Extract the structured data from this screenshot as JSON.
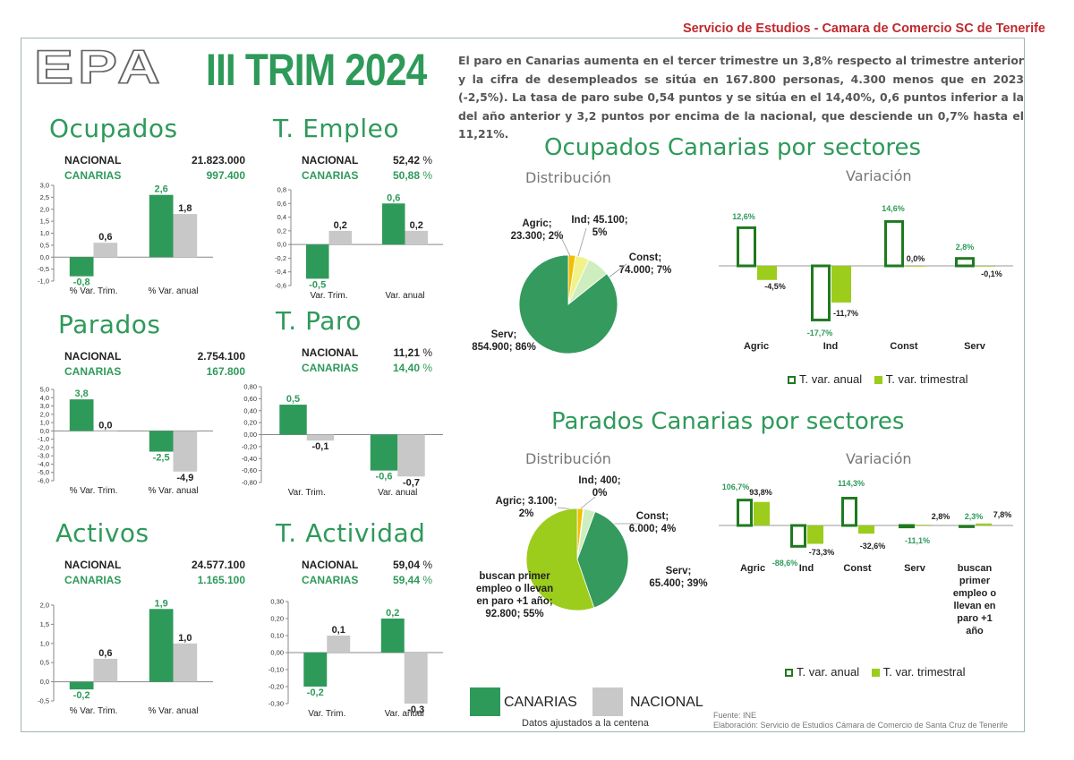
{
  "header": {
    "source": "Servicio de Estudios - Camara de Comercio SC de Tenerife",
    "logo_epa": "EPA",
    "logo_period": "III TRIM 2024"
  },
  "intro_text": "El paro en Canarias aumenta en el tercer trimestre un 3,8% respecto al trimestre anterior y la cifra de desempleados se sitúa en 167.800 personas, 4.300 menos que en 2023 (-2,5%). La tasa de paro sube 0,54 puntos y se sitúa en el 14,40%, 0,6 puntos inferior a la del año anterior y 3,2 puntos por encima de la nacional, que desciende un 0,7% hasta el 11,21%.",
  "colors": {
    "canarias": "#2e9a5a",
    "nacional": "#c8c8c8",
    "anual": "#1f7a1f",
    "trimestral": "#9ccc1c",
    "title": "#2e9a5a"
  },
  "indicators": [
    {
      "key": "ocupados",
      "title": "Ocupados",
      "nacional_label": "NACIONAL",
      "canarias_label": "CANARIAS",
      "nacional_value": "21.823.000",
      "canarias_value": "997.400",
      "unit": ""
    },
    {
      "key": "templeo",
      "title": "T. Empleo",
      "nacional_label": "NACIONAL",
      "canarias_label": "CANARIAS",
      "nacional_value": "52,42",
      "canarias_value": "50,88",
      "unit": "%"
    },
    {
      "key": "parados",
      "title": "Parados",
      "nacional_label": "NACIONAL",
      "canarias_label": "CANARIAS",
      "nacional_value": "2.754.100",
      "canarias_value": "167.800",
      "unit": ""
    },
    {
      "key": "tparo",
      "title": "T. Paro",
      "nacional_label": "NACIONAL",
      "canarias_label": "CANARIAS",
      "nacional_value": "11,21",
      "canarias_value": "14,40",
      "unit": "%"
    },
    {
      "key": "activos",
      "title": "Activos",
      "nacional_label": "NACIONAL",
      "canarias_label": "CANARIAS",
      "nacional_value": "24.577.100",
      "canarias_value": "1.165.100",
      "unit": ""
    },
    {
      "key": "tactividad",
      "title": "T. Actividad",
      "nacional_label": "NACIONAL",
      "canarias_label": "CANARIAS",
      "nacional_value": "59,04",
      "canarias_value": "59,44",
      "unit": "%"
    }
  ],
  "legend": {
    "canarias": "CANARIAS",
    "nacional": "NACIONAL",
    "note": "Datos ajustados a la centena"
  },
  "sector_sections": {
    "ocupados_title": "Ocupados Canarias por sectores",
    "parados_title": "Parados Canarias por sectores",
    "distribucion": "Distribución",
    "variacion": "Variación",
    "legend_anual": "T. var. anual",
    "legend_trimestral": "T. var. trimestral"
  },
  "footer": {
    "fuente": "Fuente: INE",
    "elaboracion": "Elaboración: Servicio de Estudios Cámara de Comercio de Santa Cruz de Tenerife"
  },
  "chart_data": [
    {
      "id": "ocupados_chart",
      "type": "bar",
      "categories": [
        "% Var. Trim.",
        "% Var. anual"
      ],
      "series": [
        {
          "name": "CANARIAS",
          "values": [
            -0.8,
            2.6
          ]
        },
        {
          "name": "NACIONAL",
          "values": [
            0.6,
            1.8
          ]
        }
      ],
      "value_labels": [
        [
          "-0,8",
          "2,6"
        ],
        [
          "0,6",
          "1,8"
        ]
      ],
      "ylim": [
        -1.0,
        3.0
      ],
      "yticks": [
        "-1,0",
        "-0,5",
        "0,0",
        "0,5",
        "1,0",
        "1,5",
        "2,0",
        "2,5",
        "3,0"
      ],
      "ytick_values": [
        -1.0,
        -0.5,
        0,
        0.5,
        1.0,
        1.5,
        2.0,
        2.5,
        3.0
      ]
    },
    {
      "id": "templeo_chart",
      "type": "bar",
      "categories": [
        "Var. Trim.",
        "Var. anual"
      ],
      "series": [
        {
          "name": "CANARIAS",
          "values": [
            -0.5,
            0.6
          ]
        },
        {
          "name": "NACIONAL",
          "values": [
            0.2,
            0.2
          ]
        }
      ],
      "value_labels": [
        [
          "-0,5",
          "0,6"
        ],
        [
          "0,2",
          "0,2"
        ]
      ],
      "ylim": [
        -0.6,
        0.8
      ],
      "yticks": [
        "-0,6",
        "-0,4",
        "-0,2",
        "0,0",
        "0,2",
        "0,4",
        "0,6",
        "0,8"
      ],
      "ytick_values": [
        -0.6,
        -0.4,
        -0.2,
        0,
        0.2,
        0.4,
        0.6,
        0.8
      ]
    },
    {
      "id": "parados_chart",
      "type": "bar",
      "categories": [
        "% Var. Trim.",
        "% Var. anual"
      ],
      "series": [
        {
          "name": "CANARIAS",
          "values": [
            3.8,
            -2.5
          ]
        },
        {
          "name": "NACIONAL",
          "values": [
            0.0,
            -4.9
          ]
        }
      ],
      "value_labels": [
        [
          "3,8",
          "-2,5"
        ],
        [
          "0,0",
          "-4,9"
        ]
      ],
      "ylim": [
        -6.0,
        5.0
      ],
      "yticks": [
        "-6,0",
        "-5,0",
        "-4,0",
        "-3,0",
        "-2,0",
        "-1,0",
        "0,0",
        "1,0",
        "2,0",
        "3,0",
        "4,0",
        "5,0"
      ],
      "ytick_values": [
        -6,
        -5,
        -4,
        -3,
        -2,
        -1,
        0,
        1,
        2,
        3,
        4,
        5
      ]
    },
    {
      "id": "tparo_chart",
      "type": "bar",
      "categories": [
        "Var. Trim.",
        "Var. anual"
      ],
      "series": [
        {
          "name": "CANARIAS",
          "values": [
            0.5,
            -0.6
          ]
        },
        {
          "name": "NACIONAL",
          "values": [
            -0.1,
            -0.7
          ]
        }
      ],
      "value_labels": [
        [
          "0,5",
          "-0,6"
        ],
        [
          "-0,1",
          "-0,7"
        ]
      ],
      "ylim": [
        -0.8,
        0.8
      ],
      "yticks": [
        "-0,80",
        "-0,60",
        "-0,40",
        "-0,20",
        "0,00",
        "0,20",
        "0,40",
        "0,60",
        "0,80"
      ],
      "ytick_values": [
        -0.8,
        -0.6,
        -0.4,
        -0.2,
        0,
        0.2,
        0.4,
        0.6,
        0.8
      ]
    },
    {
      "id": "activos_chart",
      "type": "bar",
      "categories": [
        "% Var. Trim.",
        "% Var. anual"
      ],
      "series": [
        {
          "name": "CANARIAS",
          "values": [
            -0.2,
            1.9
          ]
        },
        {
          "name": "NACIONAL",
          "values": [
            0.6,
            1.0
          ]
        }
      ],
      "value_labels": [
        [
          "-0,2",
          "1,9"
        ],
        [
          "0,6",
          "1,0"
        ]
      ],
      "ylim": [
        -0.5,
        2.0
      ],
      "yticks": [
        "-0,5",
        "0,0",
        "0,5",
        "1,0",
        "1,5",
        "2,0"
      ],
      "ytick_values": [
        -0.5,
        0,
        0.5,
        1.0,
        1.5,
        2.0
      ]
    },
    {
      "id": "tactividad_chart",
      "type": "bar",
      "categories": [
        "Var. Trim.",
        "Var. anual"
      ],
      "series": [
        {
          "name": "CANARIAS",
          "values": [
            -0.2,
            0.2
          ]
        },
        {
          "name": "NACIONAL",
          "values": [
            0.1,
            -0.3
          ]
        }
      ],
      "value_labels": [
        [
          "-0,2",
          "0,2"
        ],
        [
          "0,1",
          "-0,3"
        ]
      ],
      "ylim": [
        -0.3,
        0.3
      ],
      "yticks": [
        "-0,30",
        "-0,20",
        "-0,10",
        "0,00",
        "0,10",
        "0,20",
        "0,30"
      ],
      "ytick_values": [
        -0.3,
        -0.2,
        -0.1,
        0,
        0.1,
        0.2,
        0.3
      ]
    },
    {
      "id": "ocupados_pie",
      "type": "pie",
      "slices": [
        {
          "name": "Agric",
          "value": 23300,
          "label_lines": [
            "Agric;",
            "23.300; 2%"
          ],
          "color": "#f0c000"
        },
        {
          "name": "Ind",
          "value": 45100,
          "label_lines": [
            "Ind; 45.100;",
            "5%"
          ],
          "color": "#f2f28a"
        },
        {
          "name": "Const",
          "value": 74000,
          "label_lines": [
            "Const;",
            "74.000; 7%"
          ],
          "color": "#cfeec0"
        },
        {
          "name": "Serv",
          "value": 854900,
          "label_lines": [
            "Serv;",
            "854.900; 86%"
          ],
          "color": "#349a5e"
        }
      ]
    },
    {
      "id": "ocupados_var",
      "type": "bar",
      "categories": [
        "Agric",
        "Ind",
        "Const",
        "Serv"
      ],
      "series": [
        {
          "name": "T. var. anual",
          "values": [
            12.6,
            -17.7,
            14.6,
            2.8
          ]
        },
        {
          "name": "T. var. trimestral",
          "values": [
            -4.5,
            -11.7,
            0.0,
            -0.1
          ]
        }
      ],
      "value_labels": [
        [
          "12,6%",
          "-17,7%",
          "14,6%",
          "2,8%"
        ],
        [
          "-4,5%",
          "-11,7%",
          "0,0%",
          "-0,1%"
        ]
      ]
    },
    {
      "id": "parados_pie",
      "type": "pie",
      "slices": [
        {
          "name": "Agric",
          "value": 3100,
          "label_lines": [
            "Agric; 3.100;",
            "2%"
          ],
          "color": "#f0c000"
        },
        {
          "name": "Ind",
          "value": 400,
          "label_lines": [
            "Ind; 400;",
            "0%"
          ],
          "color": "#f2f28a"
        },
        {
          "name": "Const",
          "value": 6000,
          "label_lines": [
            "Const;",
            "6.000; 4%"
          ],
          "color": "#cfeec0"
        },
        {
          "name": "Serv",
          "value": 65400,
          "label_lines": [
            "Serv;",
            "65.400; 39%"
          ],
          "color": "#349a5e"
        },
        {
          "name": "buscan primer empleo o llevan en paro +1 año",
          "value": 92800,
          "label_lines": [
            "buscan primer",
            "empleo o llevan",
            "en paro +1 año;",
            "92.800; 55%"
          ],
          "color": "#9ccc1c"
        }
      ]
    },
    {
      "id": "parados_var",
      "type": "bar",
      "categories": [
        "Agric",
        "Ind",
        "Const",
        "Serv",
        "buscan primer empleo o llevan en paro +1 año"
      ],
      "category_lines": [
        [
          "Agric"
        ],
        [
          "Ind"
        ],
        [
          "Const"
        ],
        [
          "Serv"
        ],
        [
          "buscan",
          "primer",
          "empleo o",
          "llevan en",
          "paro +1",
          "año"
        ]
      ],
      "series": [
        {
          "name": "T. var. anual",
          "values": [
            106.7,
            -88.6,
            114.3,
            -11.1,
            2.3
          ]
        },
        {
          "name": "T. var. trimestral",
          "values": [
            93.8,
            -73.3,
            -32.6,
            2.8,
            7.8
          ]
        }
      ],
      "value_labels": [
        [
          "106,7%",
          "-88,6%",
          "114,3%",
          "-11,1%",
          "2,3%"
        ],
        [
          "93,8%",
          "-73,3%",
          "-32,6%",
          "2,8%",
          "7,8%"
        ]
      ]
    }
  ]
}
